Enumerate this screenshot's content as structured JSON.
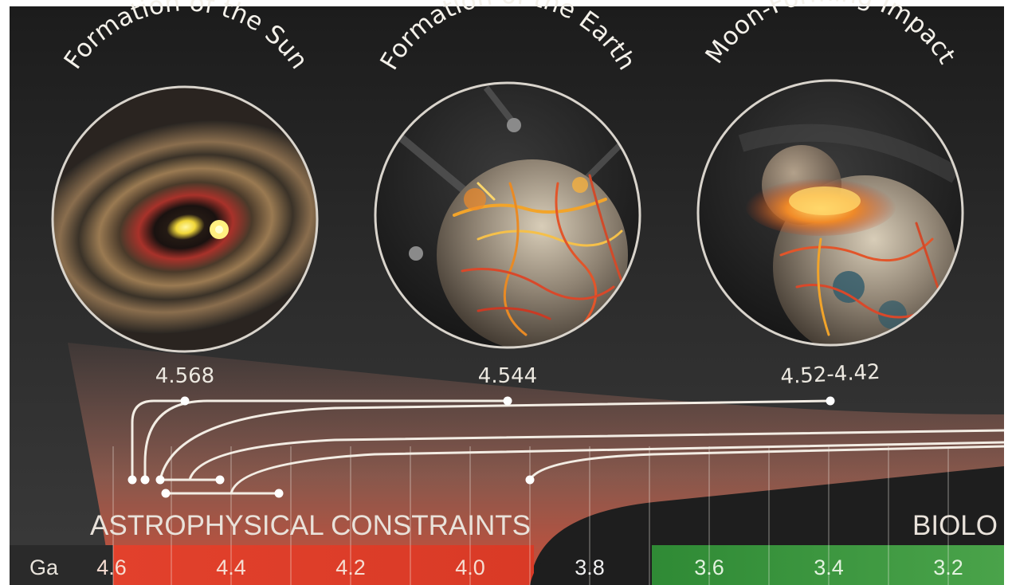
{
  "events": [
    {
      "title": "Formation of the Sun",
      "date": "4.568",
      "icon": "protoplanetary-disk-icon"
    },
    {
      "title": "Formation of the Earth",
      "date": "4.544",
      "icon": "molten-earth-icon"
    },
    {
      "title": "Moon-Forming Impact",
      "date": "4.52-4.42",
      "icon": "impact-icon"
    }
  ],
  "bands": {
    "astro": "ASTROPHYSICAL CONSTRAINTS",
    "bio": "BIOLO"
  },
  "axis": {
    "unit": "Ga",
    "ticks": [
      "4.6",
      "4.4",
      "4.2",
      "4.0",
      "3.8",
      "3.6",
      "3.4",
      "3.2"
    ]
  },
  "colors": {
    "background_dark": "#2a2a2a",
    "astro_red": "#e0402c",
    "bio_green": "#3a9a3e",
    "line_white": "#f3ede4"
  }
}
